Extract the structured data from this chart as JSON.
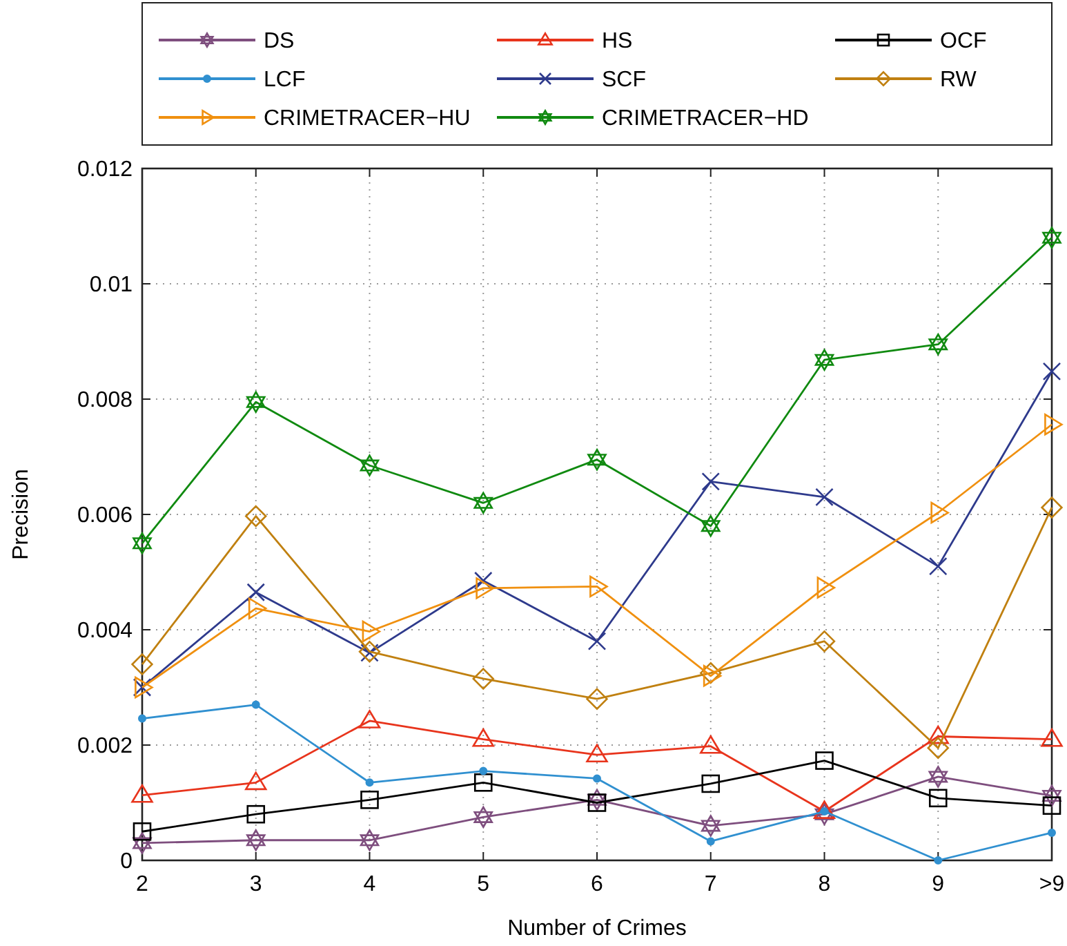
{
  "chart_data": {
    "type": "line",
    "xlabel": "Number of Crimes",
    "ylabel": "Precision",
    "categories": [
      "2",
      "3",
      "4",
      "5",
      "6",
      "7",
      "8",
      "9",
      ">9"
    ],
    "ylim": [
      0,
      0.012
    ],
    "yticks": [
      0,
      0.002,
      0.004,
      0.006,
      0.008,
      0.01,
      0.012
    ],
    "grid": true,
    "legend": "top",
    "line_style": "solid",
    "series": [
      {
        "name": "DS",
        "color": "#7e4e7e",
        "marker": "star",
        "values": [
          0.0003,
          0.00035,
          0.00035,
          0.00075,
          0.00105,
          0.0006,
          0.0008,
          0.00145,
          0.00112
        ]
      },
      {
        "name": "HS",
        "color": "#e8341c",
        "marker": "triangle",
        "values": [
          0.00113,
          0.00135,
          0.00242,
          0.0021,
          0.00183,
          0.00198,
          0.00085,
          0.00215,
          0.0021
        ]
      },
      {
        "name": "OCF",
        "color": "#000000",
        "marker": "square",
        "values": [
          0.0005,
          0.0008,
          0.00105,
          0.00135,
          0.001,
          0.00133,
          0.00173,
          0.00108,
          0.00095
        ]
      },
      {
        "name": "LCF",
        "color": "#3090d0",
        "marker": "circle",
        "values": [
          0.00246,
          0.0027,
          0.00135,
          0.00155,
          0.00142,
          0.00033,
          0.00085,
          0,
          0.00048
        ]
      },
      {
        "name": "SCF",
        "color": "#2e3a8c",
        "marker": "cross",
        "values": [
          0.003,
          0.00465,
          0.0036,
          0.00485,
          0.0038,
          0.00657,
          0.0063,
          0.0051,
          0.00848
        ]
      },
      {
        "name": "RW",
        "color": "#c08010",
        "marker": "diamond",
        "values": [
          0.0034,
          0.00597,
          0.00362,
          0.00315,
          0.0028,
          0.00325,
          0.0038,
          0.00195,
          0.00612
        ]
      },
      {
        "name": "CRIMETRACER−HU",
        "color": "#f0900f",
        "marker": "triangle-right",
        "values": [
          0.003,
          0.00437,
          0.00397,
          0.00472,
          0.00475,
          0.0032,
          0.00473,
          0.00603,
          0.00756
        ]
      },
      {
        "name": "CRIMETRACER−HD",
        "color": "#108a10",
        "marker": "star",
        "values": [
          0.0055,
          0.00795,
          0.00685,
          0.0062,
          0.00695,
          0.0058,
          0.00868,
          0.00895,
          0.0108
        ]
      }
    ]
  }
}
